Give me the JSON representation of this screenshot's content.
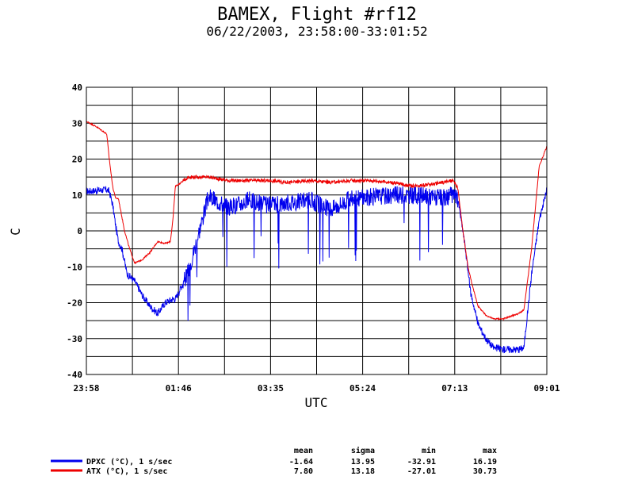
{
  "title": "BAMEX, Flight #rf12",
  "subtitle": "06/22/2003, 23:58:00-33:01:52",
  "chart_data": {
    "type": "line",
    "xlabel": "UTC",
    "ylabel": "C",
    "ylim": [
      -40,
      40
    ],
    "yticks": [
      "40",
      "30",
      "20",
      "10",
      "0",
      "-10",
      "-20",
      "-30",
      "-40"
    ],
    "xticks": [
      "23:58",
      "01:46",
      "03:35",
      "05:24",
      "07:13",
      "09:01"
    ],
    "xlim_hours": [
      0,
      9.05
    ],
    "grid": true,
    "stats_headers": [
      "mean",
      "sigma",
      "min",
      "max"
    ],
    "series": [
      {
        "name": "DPXC (°C), 1 s/sec",
        "color": "#0000ee",
        "stats": [
          "-1.64",
          "13.95",
          "-32.91",
          "16.19"
        ],
        "noise": 2.5,
        "x": [
          0.0,
          0.4,
          0.45,
          0.52,
          0.58,
          0.63,
          0.7,
          0.8,
          0.95,
          1.1,
          1.25,
          1.4,
          1.55,
          1.7,
          1.75,
          2.0,
          2.4,
          2.8,
          3.2,
          3.6,
          4.0,
          4.4,
          4.8,
          5.2,
          5.6,
          6.0,
          6.4,
          6.8,
          7.0,
          7.2,
          7.3,
          7.4,
          7.45,
          7.55,
          7.7,
          7.85,
          8.0,
          8.2,
          8.5,
          8.6,
          8.75,
          8.9,
          9.05
        ],
        "y": [
          11.0,
          11.5,
          11.0,
          7.0,
          1.0,
          -3.0,
          -5.0,
          -12.0,
          -14.0,
          -18.0,
          -21.0,
          -23.0,
          -20.0,
          -19.0,
          -19.0,
          -11.5,
          9.5,
          6.5,
          8.5,
          7.0,
          8.0,
          8.5,
          6.0,
          9.0,
          9.5,
          10.0,
          10.0,
          9.5,
          9.0,
          10.0,
          9.0,
          0.0,
          -5.0,
          -17.0,
          -26.0,
          -30.0,
          -32.5,
          -33.0,
          -33.0,
          -32.5,
          -12.0,
          3.0,
          11.5
        ]
      },
      {
        "name": "ATX (°C), 1 s/sec",
        "color": "#ee0000",
        "stats": [
          "7.80",
          "13.18",
          "-27.01",
          "30.73"
        ],
        "noise": 0.5,
        "x": [
          0.0,
          0.2,
          0.4,
          0.45,
          0.52,
          0.58,
          0.63,
          0.75,
          0.85,
          0.95,
          1.1,
          1.25,
          1.4,
          1.55,
          1.65,
          1.7,
          1.75,
          1.82,
          2.0,
          2.4,
          2.8,
          3.2,
          3.6,
          4.0,
          4.4,
          4.8,
          5.2,
          5.6,
          6.0,
          6.4,
          6.8,
          7.0,
          7.2,
          7.3,
          7.4,
          7.5,
          7.6,
          7.7,
          7.85,
          8.0,
          8.2,
          8.5,
          8.6,
          8.75,
          8.9,
          9.05
        ],
        "y": [
          30.5,
          29.0,
          27.0,
          20.0,
          12.0,
          9.0,
          9.0,
          0.0,
          -5.0,
          -9.0,
          -8.0,
          -6.0,
          -3.0,
          -3.5,
          -3.0,
          3.0,
          12.5,
          13.0,
          15.0,
          15.0,
          14.0,
          14.0,
          14.0,
          13.5,
          14.0,
          13.5,
          14.0,
          14.0,
          13.5,
          12.5,
          13.0,
          13.5,
          14.0,
          12.0,
          0.0,
          -10.0,
          -16.0,
          -21.0,
          -23.5,
          -24.5,
          -24.5,
          -23.0,
          -22.0,
          -5.0,
          18.0,
          23.5
        ]
      }
    ]
  }
}
